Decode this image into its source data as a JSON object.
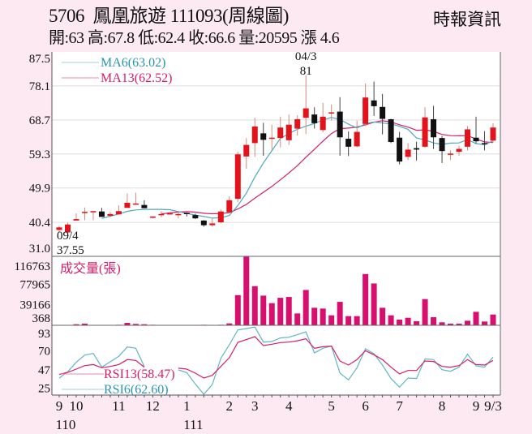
{
  "header": {
    "title": "5706  鳳凰旅遊 111093(周線圖)",
    "quote": "開:63 高:67.8 低:62.4 收:66.6 量:20595 漲 4.6",
    "source": "時報資訊"
  },
  "colors": {
    "background": "#fde9f2",
    "plot": "#ffffff",
    "up": "#e3121b",
    "down": "#111111",
    "ma6": "#4aa8c0",
    "ma13": "#d81b6a",
    "volume": "#d80f6e",
    "rsi13": "#d81b6a",
    "rsi6": "#5fb5c8",
    "grid": "#dddddd"
  },
  "chart_data": {
    "type": "candlestick",
    "title": "5706 鳳凰旅遊 111093(周線圖)",
    "ohlc_order": [
      "open",
      "high",
      "low",
      "close"
    ],
    "candles": [
      [
        38.3,
        39.4,
        37.55,
        39.0
      ],
      [
        37.6,
        40.3,
        37.6,
        39.8
      ],
      [
        40.9,
        42.9,
        40.9,
        41.3
      ],
      [
        43.3,
        44.5,
        41.0,
        43.3
      ],
      [
        43.2,
        43.5,
        41.0,
        43.5
      ],
      [
        43.4,
        44.4,
        41.9,
        41.9
      ],
      [
        42.2,
        43.3,
        41.8,
        42.7
      ],
      [
        42.6,
        45.1,
        42.6,
        43.5
      ],
      [
        44.4,
        48.4,
        44.4,
        45.8
      ],
      [
        45.3,
        48.6,
        45.3,
        45.6
      ],
      [
        45.2,
        46.5,
        44.3,
        44.3
      ],
      [
        41.7,
        42.1,
        41.5,
        42.0
      ],
      [
        42.6,
        43.5,
        41.8,
        42.7
      ],
      [
        42.8,
        43.3,
        42.6,
        42.9
      ],
      [
        42.6,
        43.6,
        41.5,
        42.7
      ],
      [
        43.0,
        43.1,
        42.0,
        42.7
      ],
      [
        42.4,
        42.8,
        41.3,
        41.5
      ],
      [
        40.9,
        41.0,
        39.2,
        39.6
      ],
      [
        39.6,
        41.5,
        39.2,
        40.1
      ],
      [
        40.4,
        44.0,
        40.1,
        43.4
      ],
      [
        43.2,
        47.6,
        43.2,
        46.5
      ],
      [
        46.9,
        59.9,
        46.0,
        59.2
      ],
      [
        58.6,
        63.7,
        55.2,
        61.8
      ],
      [
        62.3,
        69.3,
        58.5,
        66.9
      ],
      [
        65.0,
        67.9,
        58.8,
        63.2
      ],
      [
        63.7,
        67.4,
        60.3,
        63.8
      ],
      [
        63.7,
        69.6,
        61.1,
        66.6
      ],
      [
        63.1,
        70.2,
        61.8,
        67.4
      ],
      [
        66.3,
        70.0,
        64.4,
        68.9
      ],
      [
        69.3,
        81.0,
        64.8,
        71.9
      ],
      [
        70.2,
        72.2,
        66.3,
        67.8
      ],
      [
        65.9,
        73.4,
        65.3,
        69.6
      ],
      [
        70.6,
        73.0,
        68.5,
        70.8
      ],
      [
        71.0,
        75.0,
        58.8,
        63.9
      ],
      [
        63.5,
        65.5,
        58.7,
        61.3
      ],
      [
        61.4,
        68.5,
        61.1,
        65.4
      ],
      [
        67.6,
        78.8,
        67.0,
        74.9
      ],
      [
        74.1,
        79.3,
        69.8,
        72.5
      ],
      [
        72.3,
        75.9,
        64.7,
        69.0
      ],
      [
        68.9,
        69.0,
        62.3,
        62.6
      ],
      [
        63.8,
        65.4,
        56.4,
        57.2
      ],
      [
        58.5,
        62.3,
        57.6,
        60.5
      ],
      [
        60.9,
        62.7,
        57.5,
        60.5
      ],
      [
        61.3,
        72.2,
        61.0,
        69.4
      ],
      [
        68.9,
        72.6,
        60.7,
        63.9
      ],
      [
        63.7,
        64.3,
        56.8,
        60.1
      ],
      [
        59.4,
        60.3,
        57.6,
        59.4
      ],
      [
        59.9,
        61.6,
        58.8,
        60.7
      ],
      [
        61.3,
        67.0,
        60.3,
        66.1
      ],
      [
        63.8,
        69.6,
        62.2,
        62.8
      ],
      [
        62.3,
        65.6,
        60.3,
        62.0
      ],
      [
        63.0,
        67.8,
        62.4,
        66.6
      ]
    ],
    "volume": [
      300,
      300,
      2000,
      3100,
      300,
      300,
      300,
      1000,
      4600,
      2600,
      2000,
      1000,
      300,
      300,
      300,
      300,
      300,
      1000,
      300,
      1000,
      3600,
      57500,
      130600,
      74500,
      56500,
      42200,
      52400,
      54000,
      22600,
      67300,
      33400,
      31900,
      19000,
      44700,
      17500,
      17500,
      97700,
      79700,
      33400,
      19000,
      10800,
      14400,
      7700,
      49900,
      15400,
      5700,
      3100,
      3100,
      8700,
      25700,
      7200,
      20595
    ],
    "rsi13": [
      41.4,
      44.0,
      48.0,
      52.2,
      53.5,
      49.6,
      51.2,
      53.5,
      59.5,
      58.5,
      50.3,
      null,
      null,
      null,
      49.0,
      48.0,
      43.0,
      37.1,
      40.4,
      51.2,
      61.8,
      80.5,
      83.8,
      87.4,
      76.5,
      78.2,
      80.2,
      80.8,
      82.4,
      84.8,
      73.2,
      75.2,
      75.9,
      57.8,
      52.9,
      59.5,
      70.3,
      65.4,
      59.5,
      50.3,
      42.1,
      46.3,
      46.3,
      57.8,
      57.2,
      51.2,
      50.3,
      52.2,
      59.5,
      53.5,
      52.9,
      58.47
    ],
    "rsi6": [
      37.1,
      44.7,
      56.2,
      65.0,
      67.0,
      50.3,
      56.8,
      63.4,
      74.9,
      73.3,
      51.2,
      null,
      null,
      null,
      47.0,
      43.7,
      29.9,
      17.4,
      29.2,
      61.1,
      77.5,
      95.6,
      97.2,
      99.0,
      80.8,
      81.5,
      85.8,
      86.7,
      89.7,
      93.3,
      67.7,
      73.3,
      75.9,
      43.0,
      34.8,
      49.6,
      72.6,
      66.7,
      52.9,
      36.5,
      26.0,
      37.1,
      36.5,
      60.4,
      59.5,
      47.3,
      45.3,
      50.3,
      66.0,
      51.9,
      50.3,
      62.6
    ],
    "price_axis": {
      "ylim": [
        31.0,
        87.5
      ],
      "ticks": [
        "87.5",
        "78.1",
        "68.7",
        "59.3",
        "49.9",
        "40.4",
        "31.0"
      ]
    },
    "volume_axis": {
      "ticks": [
        "116763",
        "77965",
        "39166",
        "368"
      ]
    },
    "rsi_axis": {
      "ticks": [
        "93",
        "70",
        "47",
        "25"
      ]
    },
    "x_labels": [
      {
        "label": "9",
        "index": 0
      },
      {
        "label": "10",
        "index": 2
      },
      {
        "label": "11",
        "index": 7
      },
      {
        "label": "12",
        "index": 11
      },
      {
        "label": "1",
        "index": 15
      },
      {
        "label": "2",
        "index": 20
      },
      {
        "label": "3",
        "index": 23
      },
      {
        "label": "4",
        "index": 27
      },
      {
        "label": "5",
        "index": 32
      },
      {
        "label": "6",
        "index": 36
      },
      {
        "label": "7",
        "index": 40
      },
      {
        "label": "8",
        "index": 45
      },
      {
        "label": "9",
        "index": 49
      },
      {
        "label": "9/3",
        "index": 51
      }
    ],
    "year_labels": [
      {
        "label": "110",
        "index": 0
      },
      {
        "label": "111",
        "index": 15
      }
    ],
    "annotations": {
      "high": {
        "date": "04/3",
        "value": "81",
        "index": 29
      },
      "low": {
        "date": "09/4",
        "value": "37.55",
        "index": 0
      }
    },
    "legend": {
      "ma6": "MA6(63.02)",
      "ma13": "MA13(62.52)",
      "volume": "成交量(張)",
      "rsi13": "RSI13(58.47)",
      "rsi6": "RSI6(62.60)"
    },
    "ma_periods": {
      "ma6": 6,
      "ma13": 13
    }
  }
}
